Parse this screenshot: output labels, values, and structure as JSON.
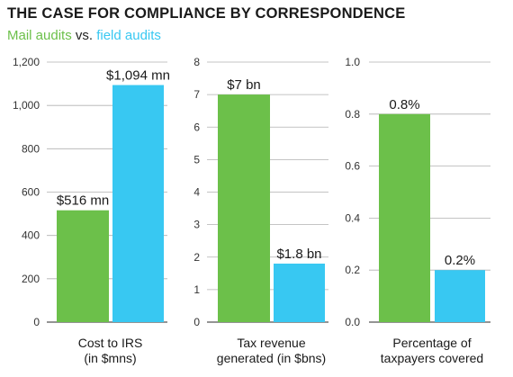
{
  "title": "THE CASE FOR COMPLIANCE BY CORRESPONDENCE",
  "subtitle": {
    "series_a": "Mail audits",
    "connector": "vs.",
    "series_b": "field audits"
  },
  "colors": {
    "mail": "#6cc04a",
    "field": "#38c8f2",
    "grid": "#b0b0b0",
    "baseline": "#555555"
  },
  "chart_data": [
    {
      "type": "bar",
      "categories": [
        "Mail audits",
        "field audits"
      ],
      "values": [
        516,
        1094
      ],
      "data_labels": [
        "$516 mn",
        "$1,094 mn"
      ],
      "xlabel": [
        "Cost to IRS",
        "(in $mns)"
      ],
      "ylim": [
        0,
        1200
      ],
      "yticks": [
        0,
        200,
        400,
        600,
        800,
        1000,
        1200
      ],
      "ytick_labels": [
        "0",
        "200",
        "400",
        "600",
        "800",
        "1,000",
        "1,200"
      ],
      "grid": true
    },
    {
      "type": "bar",
      "categories": [
        "Mail audits",
        "field audits"
      ],
      "values": [
        7,
        1.8
      ],
      "data_labels": [
        "$7 bn",
        "$1.8 bn"
      ],
      "xlabel": [
        "Tax revenue",
        "generated (in $bns)"
      ],
      "ylim": [
        0,
        8
      ],
      "yticks": [
        0,
        1,
        2,
        3,
        4,
        5,
        6,
        7,
        8
      ],
      "ytick_labels": [
        "0",
        "1",
        "2",
        "3",
        "4",
        "5",
        "6",
        "7",
        "8"
      ],
      "grid": true
    },
    {
      "type": "bar",
      "categories": [
        "Mail audits",
        "field audits"
      ],
      "values": [
        0.8,
        0.2
      ],
      "data_labels": [
        "0.8%",
        "0.2%"
      ],
      "xlabel": [
        "Percentage of",
        "taxpayers covered"
      ],
      "ylim": [
        0,
        1.0
      ],
      "yticks": [
        0,
        0.2,
        0.4,
        0.6,
        0.8,
        1.0
      ],
      "ytick_labels": [
        "0.0",
        "0.2",
        "0.4",
        "0.6",
        "0.8",
        "1.0"
      ],
      "grid": true
    }
  ]
}
